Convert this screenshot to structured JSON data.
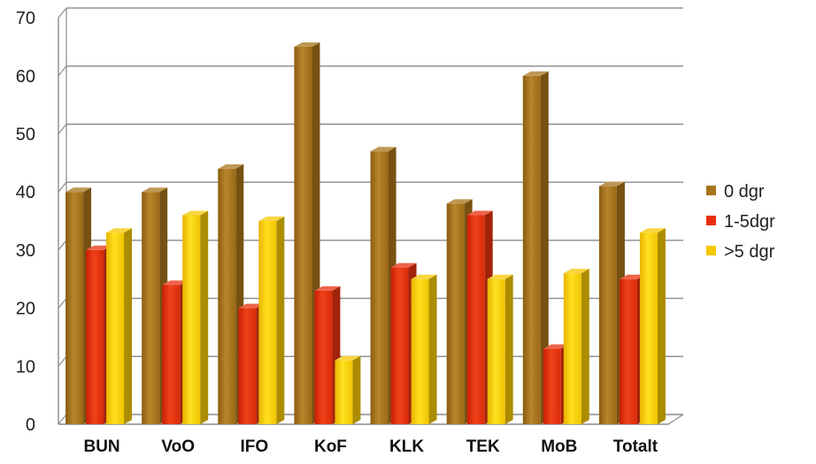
{
  "chart_data": {
    "type": "bar",
    "categories": [
      "BUN",
      "VoO",
      "IFO",
      "KoF",
      "KLK",
      "TEK",
      "MoB",
      "Totalt"
    ],
    "series": [
      {
        "name": "0 dgr",
        "values": [
          40,
          40,
          44,
          65,
          47,
          38,
          60,
          41
        ],
        "color": "#A8741A"
      },
      {
        "name": "1-5dgr",
        "values": [
          30,
          24,
          20,
          23,
          27,
          36,
          13,
          25
        ],
        "color": "#E8300E"
      },
      {
        "name": ">5 dgr",
        "values": [
          33,
          36,
          35,
          11,
          25,
          25,
          26,
          33
        ],
        "color": "#F5C800"
      }
    ],
    "ylim": [
      0,
      70
    ],
    "yticks": [
      "0",
      "10",
      "20",
      "30",
      "40",
      "50",
      "60",
      "70"
    ],
    "grid": true,
    "legend_position": "right",
    "style": "3d-column"
  }
}
